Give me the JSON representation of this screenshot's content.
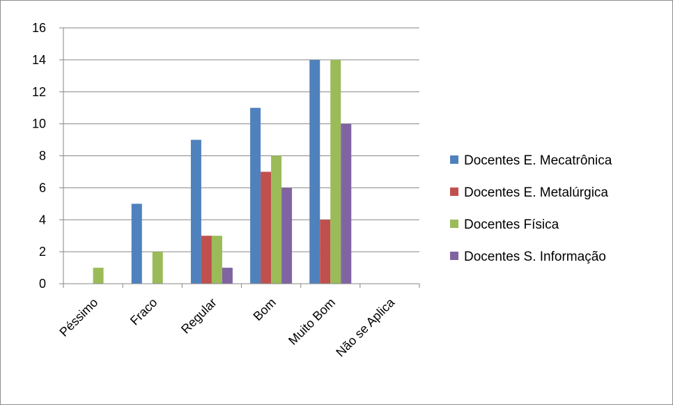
{
  "chart_data": {
    "type": "bar",
    "title": "",
    "xlabel": "",
    "ylabel": "",
    "categories": [
      "Péssimo",
      "Fraco",
      "Regular",
      "Bom",
      "Muito Bom",
      "Não se Aplica"
    ],
    "series": [
      {
        "name": "Docentes E. Mecatrônica",
        "color": "#4f81bd",
        "values": [
          0,
          5,
          9,
          11,
          14,
          0
        ]
      },
      {
        "name": "Docentes E. Metalúrgica",
        "color": "#c0504d",
        "values": [
          0,
          0,
          3,
          7,
          4,
          0
        ]
      },
      {
        "name": "Docentes Física",
        "color": "#9bbb59",
        "values": [
          1,
          2,
          3,
          8,
          14,
          0
        ]
      },
      {
        "name": "Docentes S. Informação",
        "color": "#8064a2",
        "values": [
          0,
          0,
          1,
          6,
          10,
          0
        ]
      }
    ],
    "ylim": [
      0,
      16
    ],
    "yticks": [
      0,
      2,
      4,
      6,
      8,
      10,
      12,
      14,
      16
    ],
    "grid": true,
    "legend": "right"
  }
}
